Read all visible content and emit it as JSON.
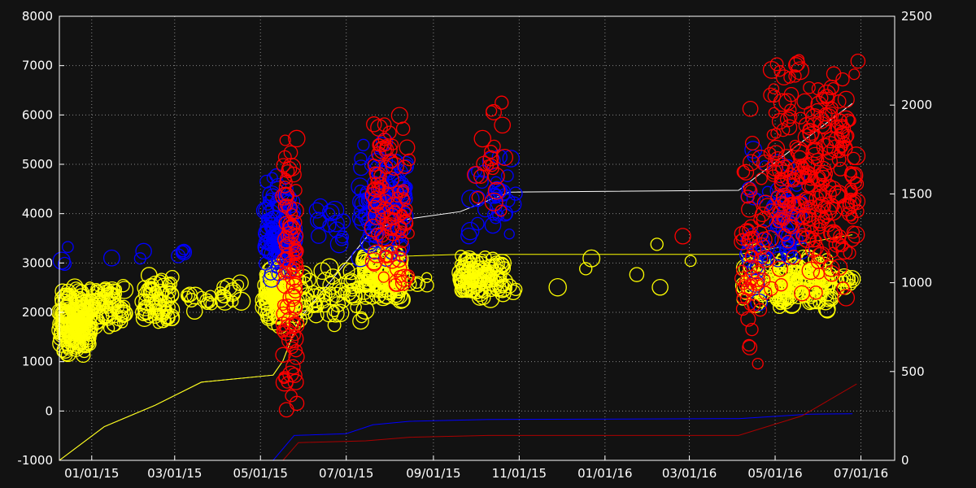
{
  "chart_data": {
    "type": "scatter",
    "background": "#121212",
    "grid": "dotted",
    "x_tick_labels": [
      "01/01/15",
      "03/01/15",
      "05/01/15",
      "07/01/15",
      "09/01/15",
      "11/01/15",
      "01/01/16",
      "03/01/16",
      "05/01/16",
      "07/01/16"
    ],
    "x_ticks": [
      "2015-01-01",
      "2015-03-01",
      "2015-05-01",
      "2015-07-01",
      "2015-09-01",
      "2015-11-01",
      "2016-01-01",
      "2016-03-01",
      "2016-05-01",
      "2016-07-01"
    ],
    "xlim": [
      "2014-12-09",
      "2016-07-25"
    ],
    "y_left": {
      "ylim": [
        -1000,
        8000
      ],
      "ticks": [
        -1000,
        0,
        1000,
        2000,
        3000,
        4000,
        5000,
        6000,
        7000,
        8000
      ]
    },
    "y_right": {
      "ylim": [
        0,
        2500
      ],
      "ticks": [
        0,
        500,
        1000,
        1500,
        2000,
        2500
      ]
    },
    "series_colors": {
      "yellow": "#ffff00",
      "blue": "#0000ff",
      "red": "#ff0000"
    },
    "scatter": [
      {
        "color": "yellow",
        "clusters": [
          {
            "x": [
              "2014-12-09",
              "2014-12-31"
            ],
            "y": [
              1000,
              2600
            ],
            "n": 180
          },
          {
            "x": [
              "2014-12-31",
              "2015-01-25"
            ],
            "y": [
              1600,
              2700
            ],
            "n": 70
          },
          {
            "x": [
              "2015-02-05",
              "2015-02-28"
            ],
            "y": [
              1700,
              2800
            ],
            "n": 60
          },
          {
            "x": [
              "2015-03-08",
              "2015-04-18"
            ],
            "y": [
              2000,
              2700
            ],
            "n": 26
          },
          {
            "x": [
              "2015-05-03",
              "2015-05-26"
            ],
            "y": [
              1700,
              3000
            ],
            "n": 160
          },
          {
            "x": [
              "2015-05-26",
              "2015-07-17"
            ],
            "y": [
              1700,
              3000
            ],
            "n": 60
          },
          {
            "x": [
              "2015-07-13",
              "2015-08-10"
            ],
            "y": [
              2100,
              3300
            ],
            "n": 150
          },
          {
            "x": [
              "2015-08-15",
              "2015-08-28"
            ],
            "y": [
              2400,
              2900
            ],
            "n": 6
          },
          {
            "x": [
              "2015-09-18",
              "2015-10-22"
            ],
            "y": [
              2200,
              3200
            ],
            "n": 110
          },
          {
            "x": [
              "2015-10-20",
              "2015-10-30"
            ],
            "y": [
              2200,
              2600
            ],
            "n": 6
          },
          {
            "x": [
              "2015-11-10",
              "2016-03-10"
            ],
            "y": [
              2200,
              3700
            ],
            "n": 7
          },
          {
            "x": [
              "2016-04-08",
              "2016-04-28"
            ],
            "y": [
              2000,
              3300
            ],
            "n": 45
          },
          {
            "x": [
              "2016-04-30",
              "2016-06-10"
            ],
            "y": [
              2000,
              3200
            ],
            "n": 150
          },
          {
            "x": [
              "2016-06-12",
              "2016-06-26"
            ],
            "y": [
              2300,
              2900
            ],
            "n": 14
          }
        ]
      },
      {
        "color": "blue",
        "clusters": [
          {
            "x": [
              "2014-12-09",
              "2014-12-15"
            ],
            "y": [
              2800,
              3400
            ],
            "n": 3
          },
          {
            "x": [
              "2015-01-15",
              "2015-02-10"
            ],
            "y": [
              2900,
              3300
            ],
            "n": 3
          },
          {
            "x": [
              "2015-03-01",
              "2015-03-08"
            ],
            "y": [
              3000,
              3600
            ],
            "n": 5
          },
          {
            "x": [
              "2015-05-04",
              "2015-05-26"
            ],
            "y": [
              2400,
              4900
            ],
            "n": 120
          },
          {
            "x": [
              "2015-06-09",
              "2015-07-01"
            ],
            "y": [
              3000,
              4600
            ],
            "n": 15
          },
          {
            "x": [
              "2015-07-10",
              "2015-08-14"
            ],
            "y": [
              2800,
              5700
            ],
            "n": 110
          },
          {
            "x": [
              "2015-09-26",
              "2015-10-30"
            ],
            "y": [
              3400,
              5300
            ],
            "n": 35
          },
          {
            "x": [
              "2016-04-10",
              "2016-04-26"
            ],
            "y": [
              800,
              5900
            ],
            "n": 25
          },
          {
            "x": [
              "2016-05-01",
              "2016-05-20"
            ],
            "y": [
              2800,
              5200
            ],
            "n": 45
          }
        ]
      },
      {
        "color": "red",
        "clusters": [
          {
            "x": [
              "2015-05-17",
              "2015-05-27"
            ],
            "y": [
              -200,
              5800
            ],
            "n": 90
          },
          {
            "x": [
              "2015-07-20",
              "2015-08-15"
            ],
            "y": [
              2000,
              6200
            ],
            "n": 95
          },
          {
            "x": [
              "2015-09-29",
              "2015-10-22"
            ],
            "y": [
              3200,
              6700
            ],
            "n": 20
          },
          {
            "x": [
              "2016-02-25",
              "2016-02-27"
            ],
            "y": [
              3500,
              3600
            ],
            "n": 1
          },
          {
            "x": [
              "2016-04-07",
              "2016-04-26"
            ],
            "y": [
              700,
              6200
            ],
            "n": 60
          },
          {
            "x": [
              "2016-04-27",
              "2016-06-29"
            ],
            "y": [
              2200,
              7300
            ],
            "n": 260
          }
        ]
      }
    ],
    "cumulative_lines": [
      {
        "color": "#ffffff",
        "axis": "right",
        "points": [
          [
            "2014-12-09",
            0
          ],
          [
            "2015-01-10",
            190
          ],
          [
            "2015-02-15",
            310
          ],
          [
            "2015-03-20",
            440
          ],
          [
            "2015-05-10",
            480
          ],
          [
            "2015-05-17",
            560
          ],
          [
            "2015-05-28",
            790
          ],
          [
            "2015-06-20",
            1010
          ],
          [
            "2015-07-20",
            1300
          ],
          [
            "2015-08-15",
            1360
          ],
          [
            "2015-09-20",
            1400
          ],
          [
            "2015-10-25",
            1510
          ],
          [
            "2016-04-05",
            1520
          ],
          [
            "2016-06-25",
            2010
          ]
        ]
      },
      {
        "color": "#ffff00",
        "axis": "right",
        "points": [
          [
            "2014-12-09",
            0
          ],
          [
            "2015-01-10",
            190
          ],
          [
            "2015-02-15",
            310
          ],
          [
            "2015-03-20",
            440
          ],
          [
            "2015-05-10",
            480
          ],
          [
            "2015-05-17",
            560
          ],
          [
            "2015-05-28",
            780
          ],
          [
            "2015-06-20",
            990
          ],
          [
            "2015-07-20",
            1140
          ],
          [
            "2015-08-15",
            1150
          ],
          [
            "2015-09-20",
            1160
          ],
          [
            "2015-10-25",
            1160
          ],
          [
            "2016-04-05",
            1160
          ],
          [
            "2016-06-25",
            1270
          ]
        ]
      },
      {
        "color": "#0000ff",
        "axis": "right",
        "points": [
          [
            "2014-12-09",
            0
          ],
          [
            "2015-05-10",
            0
          ],
          [
            "2015-05-25",
            140
          ],
          [
            "2015-07-01",
            150
          ],
          [
            "2015-07-20",
            200
          ],
          [
            "2015-08-15",
            220
          ],
          [
            "2015-10-10",
            230
          ],
          [
            "2016-04-05",
            235
          ],
          [
            "2016-05-25",
            260
          ],
          [
            "2016-06-25",
            262
          ]
        ]
      },
      {
        "color": "#aa0000",
        "axis": "right",
        "points": [
          [
            "2015-05-17",
            0
          ],
          [
            "2015-05-28",
            100
          ],
          [
            "2015-07-15",
            110
          ],
          [
            "2015-08-15",
            130
          ],
          [
            "2015-10-10",
            140
          ],
          [
            "2016-04-05",
            140
          ],
          [
            "2016-05-20",
            250
          ],
          [
            "2016-06-28",
            430
          ]
        ]
      }
    ]
  }
}
